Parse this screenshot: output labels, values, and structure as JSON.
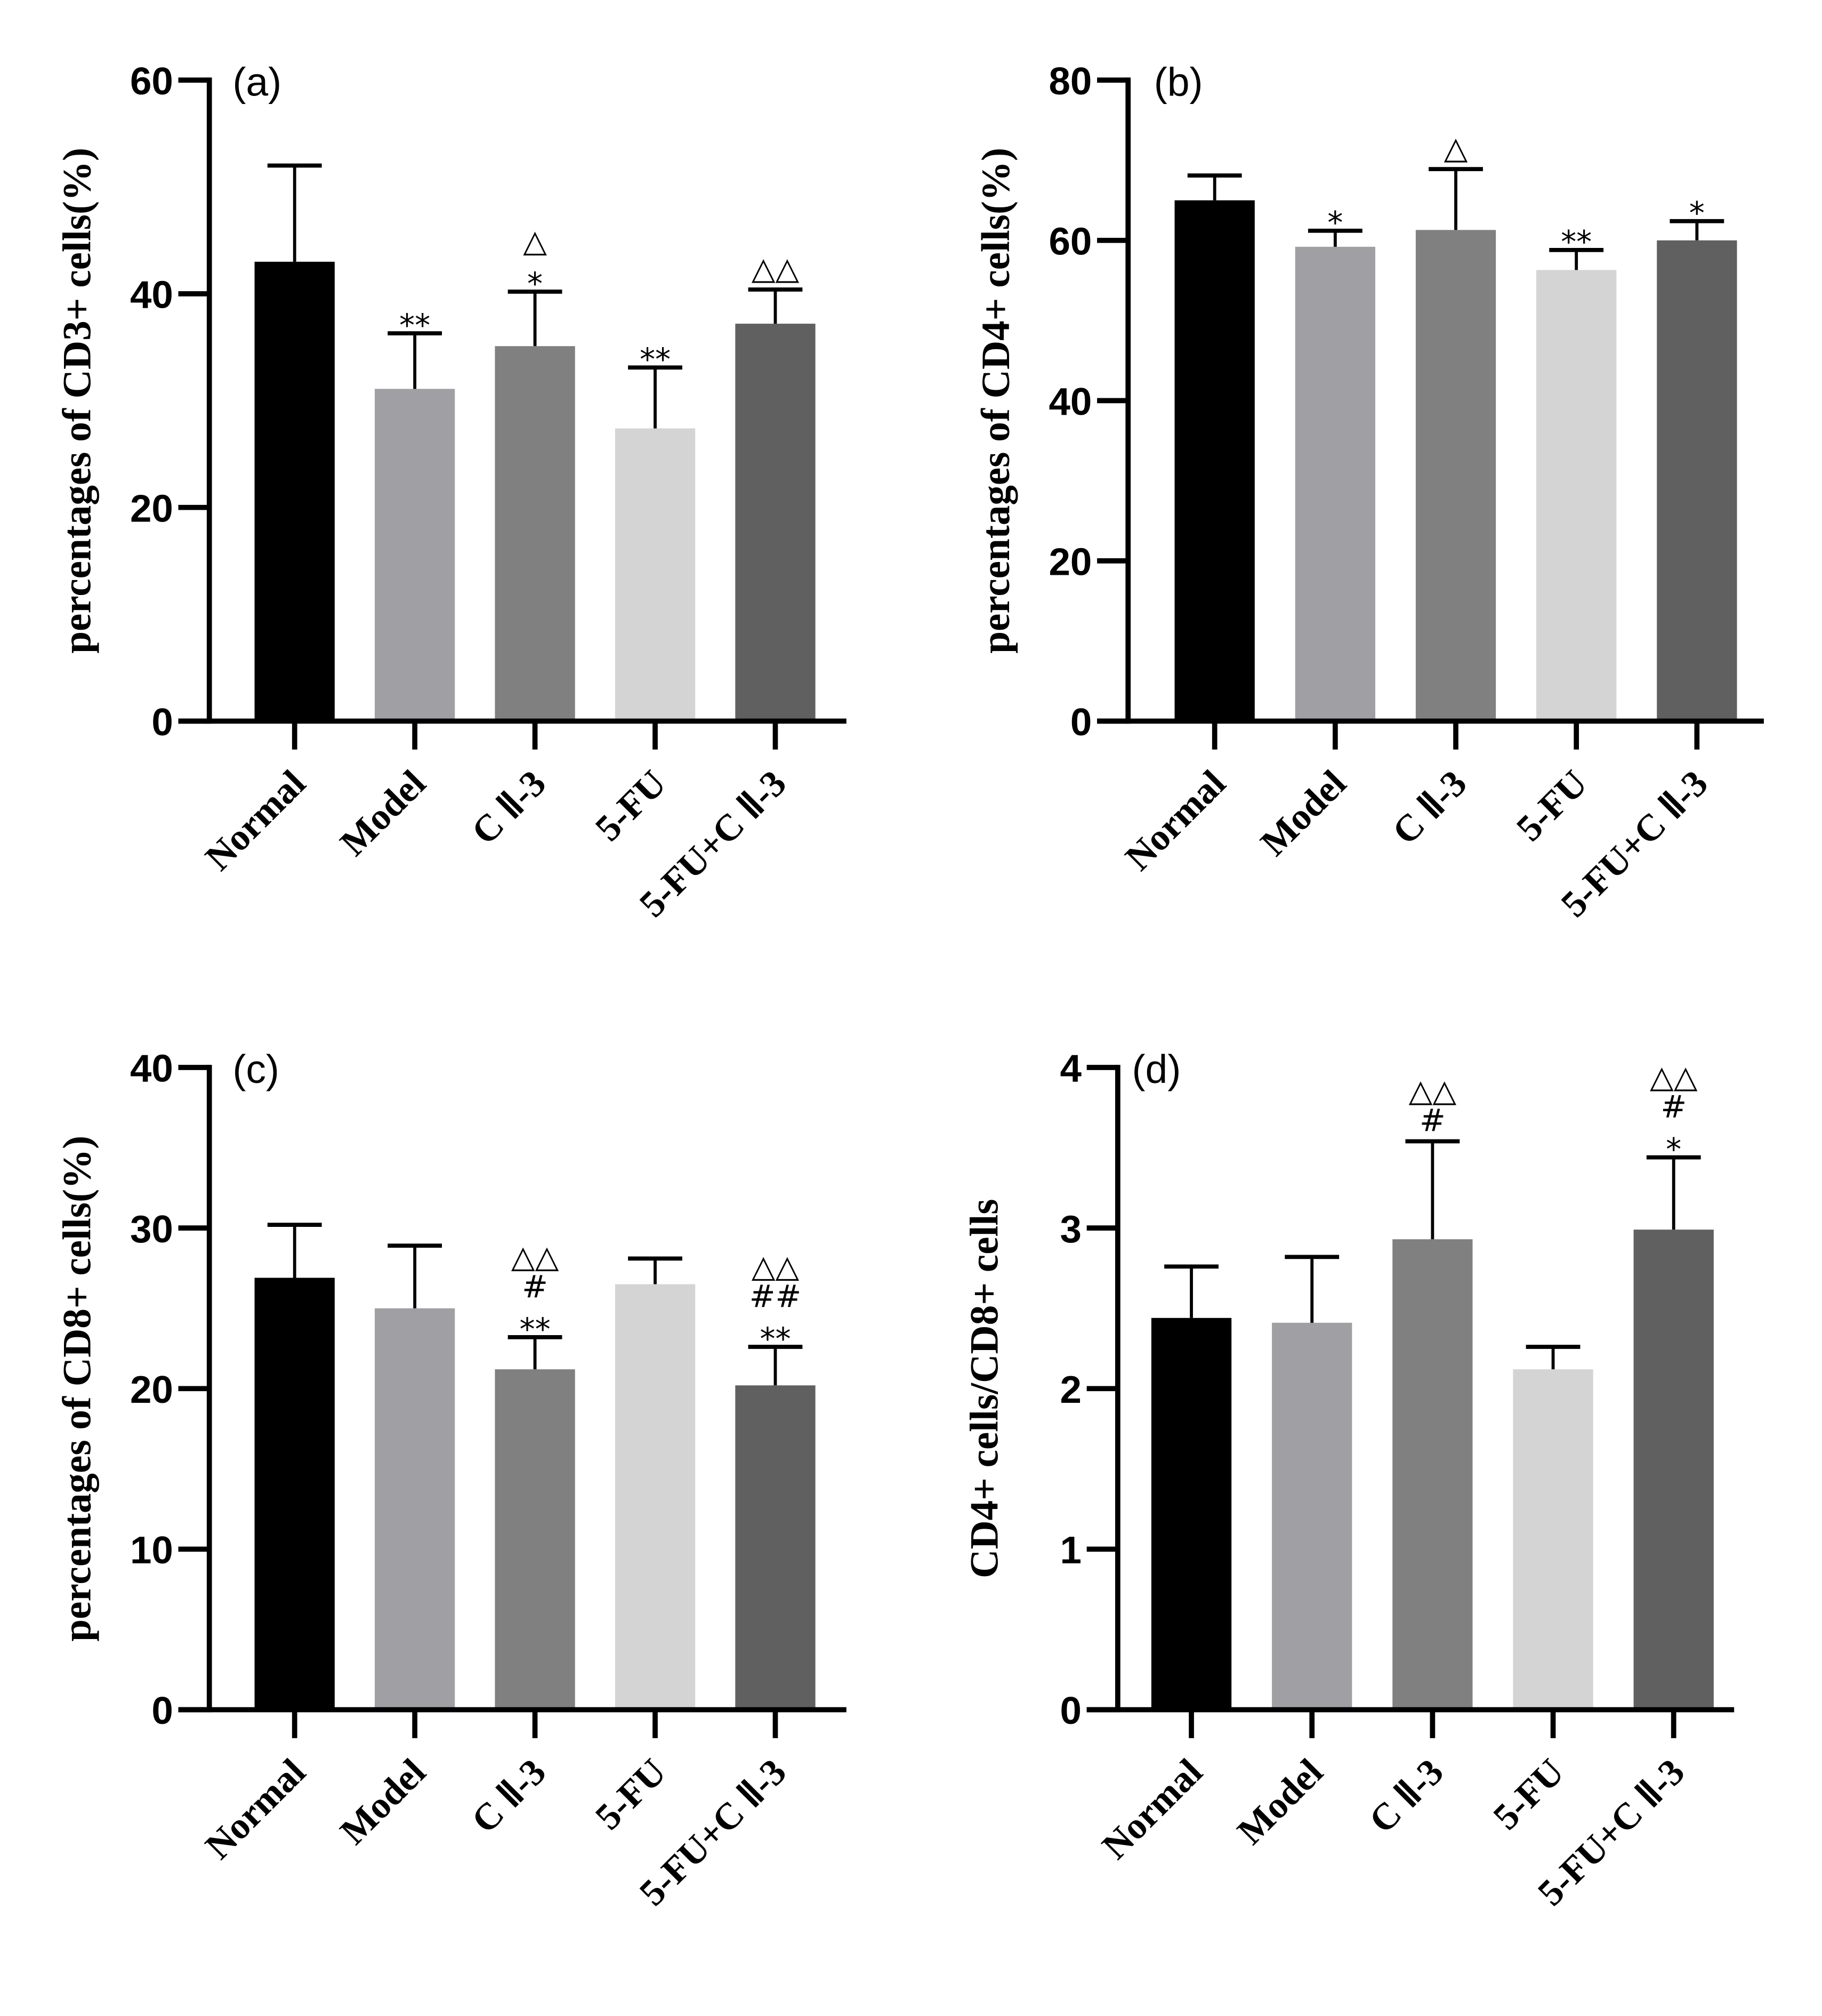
{
  "figure": {
    "categories": [
      "Normal",
      "Model",
      "C Ⅱ-3",
      "5-FU",
      "5-FU+C Ⅱ-3"
    ],
    "bar_colors": [
      "#000000",
      "#a0a0a4",
      "#808080",
      "#d4d4d4",
      "#606060"
    ]
  },
  "chart_data": [
    {
      "id": "a",
      "type": "bar",
      "panel_label": "(a)",
      "title": "",
      "xlabel": "",
      "ylabel": "percentages of CD3+ cells(%)",
      "ylim": [
        0,
        60
      ],
      "yticks": [
        0,
        20,
        40,
        60
      ],
      "grid": false,
      "categories": [
        "Normal",
        "Model",
        "C Ⅱ-3",
        "5-FU",
        "5-FU+C Ⅱ-3"
      ],
      "values": [
        43.0,
        31.1,
        35.1,
        27.4,
        37.2
      ],
      "error_upper": [
        52.0,
        36.3,
        40.2,
        33.1,
        40.4
      ],
      "annotations": [
        [],
        [
          "**"
        ],
        [
          "△",
          "*"
        ],
        [
          "**"
        ],
        [
          "△△"
        ]
      ]
    },
    {
      "id": "b",
      "type": "bar",
      "panel_label": "(b)",
      "title": "",
      "xlabel": "",
      "ylabel": "percentages of CD4+ cells(%)",
      "ylim": [
        0,
        80
      ],
      "yticks": [
        0,
        20,
        40,
        60,
        80
      ],
      "grid": false,
      "categories": [
        "Normal",
        "Model",
        "C Ⅱ-3",
        "5-FU",
        "5-FU+C Ⅱ-3"
      ],
      "values": [
        65.0,
        59.2,
        61.3,
        56.3,
        60.0
      ],
      "error_upper": [
        68.1,
        61.2,
        68.9,
        58.8,
        62.4
      ],
      "annotations": [
        [],
        [
          "*"
        ],
        [
          "△"
        ],
        [
          "**"
        ],
        [
          "*"
        ]
      ]
    },
    {
      "id": "c",
      "type": "bar",
      "panel_label": "(c)",
      "title": "",
      "xlabel": "",
      "ylabel": "percentages of CD8+ cells(%)",
      "ylim": [
        0,
        40
      ],
      "yticks": [
        0,
        10,
        20,
        30,
        40
      ],
      "grid": false,
      "categories": [
        "Normal",
        "Model",
        "C Ⅱ-3",
        "5-FU",
        "5-FU+C Ⅱ-3"
      ],
      "values": [
        26.9,
        25.0,
        21.2,
        26.5,
        20.2
      ],
      "error_upper": [
        30.2,
        28.9,
        23.2,
        28.1,
        22.6
      ],
      "annotations": [
        [],
        [],
        [
          "△△",
          "#",
          "**"
        ],
        [],
        [
          "△△",
          "##",
          "**"
        ]
      ]
    },
    {
      "id": "d",
      "type": "bar",
      "panel_label": "(d)",
      "title": "",
      "xlabel": "",
      "ylabel": "CD4+ cells/CD8+ cells",
      "ylim": [
        0,
        4
      ],
      "yticks": [
        0,
        1,
        2,
        3,
        4
      ],
      "grid": false,
      "categories": [
        "Normal",
        "Model",
        "C Ⅱ-3",
        "5-FU",
        "5-FU+C Ⅱ-3"
      ],
      "values": [
        2.44,
        2.41,
        2.93,
        2.12,
        2.99
      ],
      "error_upper": [
        2.76,
        2.82,
        3.54,
        2.26,
        3.44
      ],
      "annotations": [
        [],
        [],
        [
          "△△",
          "#"
        ],
        [],
        [
          "△△",
          "#",
          "*"
        ]
      ]
    }
  ]
}
